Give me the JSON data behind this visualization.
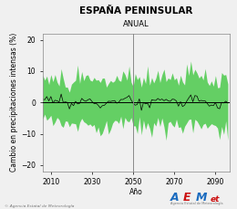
{
  "title": "ESPAÑA PENINSULAR",
  "subtitle": "ANUAL",
  "xlabel": "Año",
  "ylabel": "Cambio en precipitaciones intensas (%)",
  "xlim": [
    2006,
    2097
  ],
  "ylim": [
    -22,
    22
  ],
  "yticks": [
    -20,
    -10,
    0,
    10,
    20
  ],
  "xticks": [
    2010,
    2030,
    2050,
    2070,
    2090
  ],
  "vline_x": 2050,
  "hline_y": 0,
  "fill_color": "#55cc55",
  "line_color": "#000000",
  "background_color": "#f0f0f0",
  "title_fontsize": 7.5,
  "subtitle_fontsize": 6,
  "label_fontsize": 5.5,
  "tick_fontsize": 5.5,
  "watermark": "© Agencia Estatal de Meteorología",
  "seed": 12,
  "n_years": 91,
  "start_year": 2006
}
